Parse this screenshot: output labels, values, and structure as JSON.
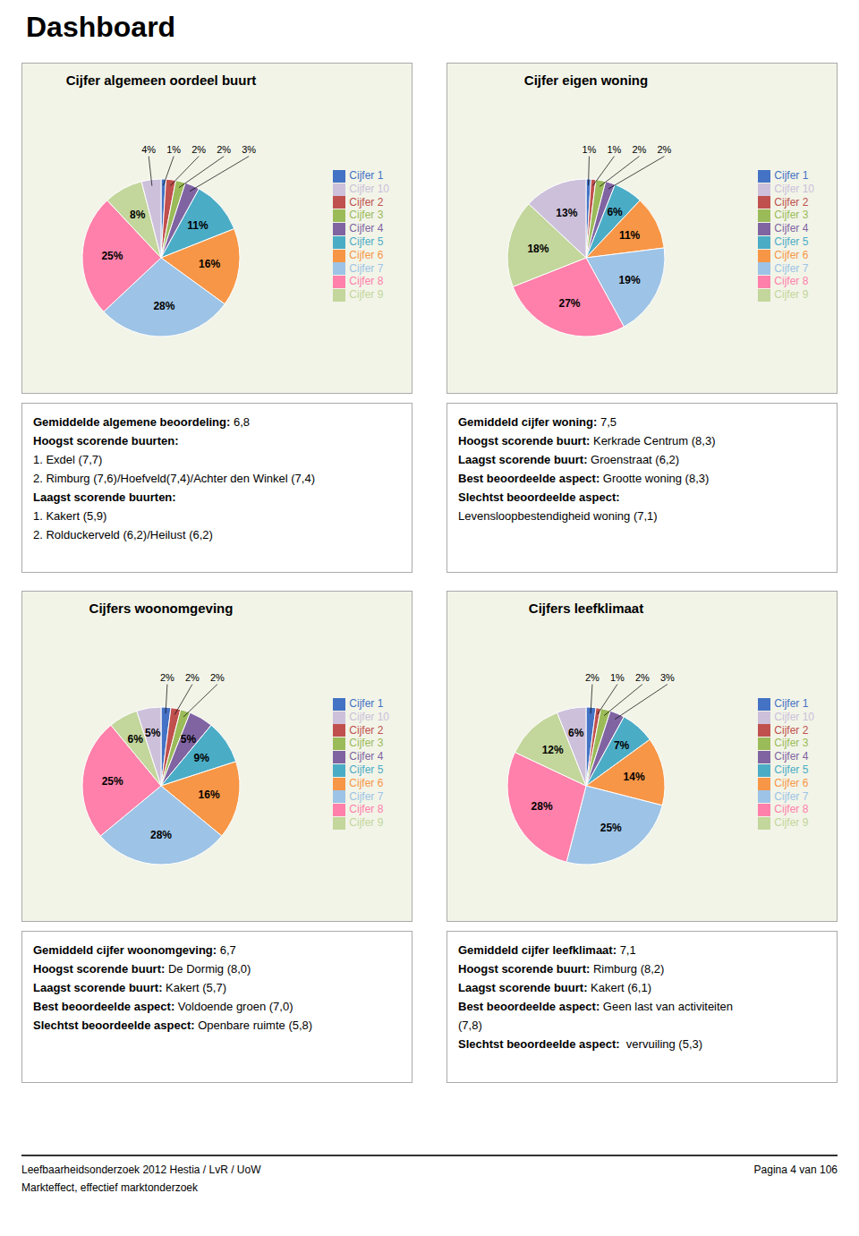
{
  "title": "Dashboard",
  "chart_data": [
    {
      "type": "pie",
      "title": "Cijfer algemeen oordeel buurt",
      "categories": [
        "Cijfer 1",
        "Cijfer 2",
        "Cijfer 3",
        "Cijfer 4",
        "Cijfer 5",
        "Cijfer 6",
        "Cijfer 7",
        "Cijfer 8",
        "Cijfer 9",
        "Cijfer 10"
      ],
      "values": [
        1,
        2,
        2,
        3,
        11,
        16,
        28,
        25,
        8,
        4
      ],
      "value_labels": [
        "1%",
        "2%",
        "2%",
        "3%",
        "11%",
        "16%",
        "28%",
        "25%",
        "8%",
        "4%"
      ],
      "colors": [
        "#4472C4",
        "#C0504D",
        "#9BBB59",
        "#8064A2",
        "#4BACC6",
        "#F79646",
        "#9DC3E6",
        "#FF80AA",
        "#C3D69B",
        "#CCC0DA"
      ],
      "data_labels": true,
      "legend": "right",
      "annotations": [
        "Gemiddelde algemene beoordeling: 6,8",
        "Hoogst scorende buurten:",
        "1. Exdel (7,7)",
        "2. Rimburg (7,6)/Hoefveld(7,4)/Achter den Winkel (7,4)",
        "Laagst scorende buurten:",
        "1. Kakert (5,9)",
        "2. Rolduckerveld (6,2)/Heilust (6,2)"
      ]
    },
    {
      "type": "pie",
      "title": "Cijfer eigen woning",
      "categories": [
        "Cijfer 1",
        "Cijfer 2",
        "Cijfer 3",
        "Cijfer 4",
        "Cijfer 5",
        "Cijfer 6",
        "Cijfer 7",
        "Cijfer 8",
        "Cijfer 9",
        "Cijfer 10"
      ],
      "values": [
        1,
        1,
        2,
        2,
        6,
        11,
        19,
        27,
        18,
        13
      ],
      "value_labels": [
        "1%",
        "1%",
        "2%",
        "2%",
        "6%",
        "11%",
        "19%",
        "27%",
        "18%",
        "13%"
      ],
      "colors": [
        "#4472C4",
        "#C0504D",
        "#9BBB59",
        "#8064A2",
        "#4BACC6",
        "#F79646",
        "#9DC3E6",
        "#FF80AA",
        "#C3D69B",
        "#CCC0DA"
      ],
      "data_labels": true,
      "legend": "right",
      "annotations": [
        "Gemiddeld cijfer woning: 7,5",
        "Hoogst scorende buurt: Kerkrade Centrum (8,3)",
        "Laagst scorende buurt: Groenstraat (6,2)",
        "Best beoordeelde aspect: Grootte woning (8,3)",
        "Slechtst beoordeelde aspect:",
        "Levensloopbestendigheid woning (7,1)"
      ]
    },
    {
      "type": "pie",
      "title": "Cijfers woonomgeving",
      "categories": [
        "Cijfer 1",
        "Cijfer 2",
        "Cijfer 3",
        "Cijfer 4",
        "Cijfer 5",
        "Cijfer 6",
        "Cijfer 7",
        "Cijfer 8",
        "Cijfer 9",
        "Cijfer 10"
      ],
      "values": [
        2,
        2,
        2,
        5,
        9,
        16,
        28,
        25,
        6,
        5
      ],
      "value_labels": [
        "2%",
        "2%",
        "2%",
        "5%",
        "9%",
        "16%",
        "28%",
        "25%",
        "6%",
        "5%"
      ],
      "colors": [
        "#4472C4",
        "#C0504D",
        "#9BBB59",
        "#8064A2",
        "#4BACC6",
        "#F79646",
        "#9DC3E6",
        "#FF80AA",
        "#C3D69B",
        "#CCC0DA"
      ],
      "data_labels": true,
      "legend": "right",
      "annotations": [
        "Gemiddeld cijfer woonomgeving: 6,7",
        "Hoogst scorende buurt: De Dormig (8,0)",
        "Laagst scorende buurt: Kakert (5,7)",
        "Best beoordeelde aspect: Voldoende groen (7,0)",
        "Slechtst beoordeelde aspect: Openbare ruimte (5,8)"
      ]
    },
    {
      "type": "pie",
      "title": "Cijfers leefklimaat",
      "categories": [
        "Cijfer 1",
        "Cijfer 2",
        "Cijfer 3",
        "Cijfer 4",
        "Cijfer 5",
        "Cijfer 6",
        "Cijfer 7",
        "Cijfer 8",
        "Cijfer 9",
        "Cijfer 10"
      ],
      "values": [
        2,
        1,
        2,
        3,
        7,
        14,
        25,
        28,
        12,
        6
      ],
      "value_labels": [
        "2%",
        "1%",
        "2%",
        "3%",
        "7%",
        "14%",
        "25%",
        "28%",
        "12%",
        "6%"
      ],
      "colors": [
        "#4472C4",
        "#C0504D",
        "#9BBB59",
        "#8064A2",
        "#4BACC6",
        "#F79646",
        "#9DC3E6",
        "#FF80AA",
        "#C3D69B",
        "#CCC0DA"
      ],
      "data_labels": true,
      "legend": "right",
      "annotations": [
        "Gemiddeld cijfer leefklimaat: 7,1",
        "Hoogst scorende buurt: Rimburg (8,2)",
        "Laagst scorende buurt: Kakert (6,1)",
        "Best beoordeelde aspect: Geen last van activiteiten",
        "(7,8)",
        "Slechtst beoordeelde aspect:  vervuiling (5,3)"
      ]
    }
  ],
  "annotations": [
    "Leefbaarheidsonderzoek 2012 Hestia / LvR / UoW",
    "Markteffect, effectief marktonderzoek",
    "Pagina 4 van 106"
  ]
}
